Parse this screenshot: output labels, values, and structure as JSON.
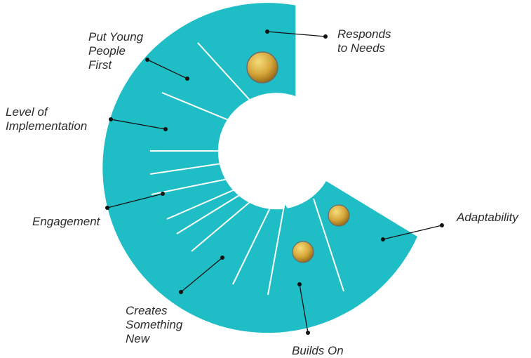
{
  "colors": {
    "segment": "#1fbec6",
    "leader": "#111111",
    "label": "#2b2b2b",
    "marker_light": "#f6dc7a",
    "marker_dark": "#8a5f10"
  },
  "labels": {
    "responds_to_needs": [
      "Responds",
      "to Needs"
    ],
    "put_young_people_first": [
      "Put Young",
      "People",
      "First"
    ],
    "level_of_implementation": [
      "Level of",
      "Implementation"
    ],
    "engagement": [
      "Engagement"
    ],
    "creates_something_new": [
      "Creates",
      "Something",
      "New"
    ],
    "builds_on": [
      "Builds On"
    ],
    "adaptability": [
      "Adaptability"
    ]
  }
}
